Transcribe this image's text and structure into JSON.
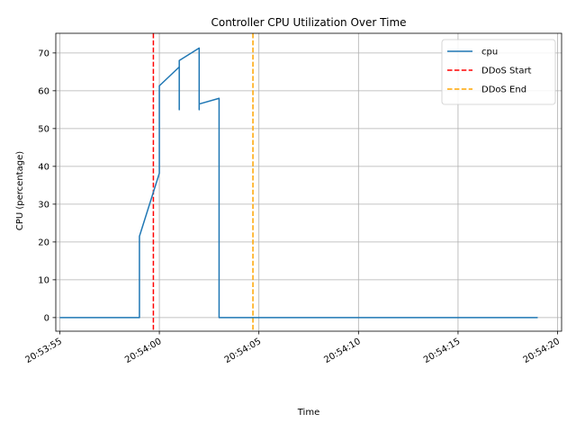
{
  "chart_data": {
    "type": "line",
    "title": "Controller CPU Utilization Over Time",
    "xlabel": "Time",
    "ylabel": "CPU (percentage)",
    "x_unit": "time (HH:MM:SS)",
    "xlim": [
      "20:53:54.8",
      "20:54:20.2"
    ],
    "ylim": [
      -3.6,
      75.2
    ],
    "x_ticks": [
      "20:53:55",
      "20:54:00",
      "20:54:05",
      "20:54:10",
      "20:54:15",
      "20:54:20"
    ],
    "y_ticks": [
      0,
      10,
      20,
      30,
      40,
      50,
      60,
      70
    ],
    "grid": true,
    "legend_position": "top-right",
    "series": [
      {
        "name": "cpu",
        "color": "#1f77b4",
        "style": "solid",
        "x": [
          "20:53:55.0",
          "20:53:59.0",
          "20:53:59.0",
          "20:54:00.0",
          "20:54:00.0",
          "20:54:01.0",
          "20:54:01.0",
          "20:54:01.0",
          "20:54:02.0",
          "20:54:02.0",
          "20:54:02.0",
          "20:54:03.0",
          "20:54:03.0",
          "20:54:19.0"
        ],
        "values": [
          0,
          0,
          21.5,
          38.2,
          61.3,
          66.3,
          55.0,
          68.0,
          71.3,
          55.0,
          56.5,
          58.0,
          0,
          0
        ]
      }
    ],
    "vlines": [
      {
        "name": "DDoS Start",
        "x": "20:53:59.7",
        "color": "#ff0000",
        "style": "dashed"
      },
      {
        "name": "DDoS End",
        "x": "20:54:04.7",
        "color": "#ffa500",
        "style": "dashed"
      }
    ]
  }
}
